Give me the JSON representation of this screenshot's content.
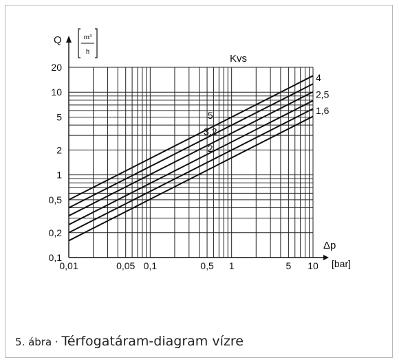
{
  "caption": {
    "number": "5. ábra",
    "separator": " · ",
    "title": "Térfogatáram-diagram vízre"
  },
  "chart_data": {
    "type": "line",
    "xscale": "log",
    "yscale": "log",
    "xlim": [
      0.01,
      10
    ],
    "ylim": [
      0.1,
      20
    ],
    "grid": true,
    "xlabel": "Δp",
    "xunit": "[bar]",
    "ylabel": "Q",
    "yunit_num": "m³",
    "yunit_den": "h",
    "legend_title": "Kvs",
    "x_ticks": [
      {
        "value": 0.01,
        "label": "0,01"
      },
      {
        "value": 0.05,
        "label": "0,05"
      },
      {
        "value": 0.1,
        "label": "0,1"
      },
      {
        "value": 0.5,
        "label": "0,5"
      },
      {
        "value": 1,
        "label": "1"
      },
      {
        "value": 5,
        "label": "5"
      },
      {
        "value": 10,
        "label": "10"
      }
    ],
    "y_ticks": [
      {
        "value": 0.1,
        "label": "0,1"
      },
      {
        "value": 0.2,
        "label": "0,2"
      },
      {
        "value": 0.5,
        "label": "0,5"
      },
      {
        "value": 1,
        "label": "1"
      },
      {
        "value": 2,
        "label": "2"
      },
      {
        "value": 5,
        "label": "5"
      },
      {
        "value": 10,
        "label": "10"
      },
      {
        "value": 20,
        "label": "20"
      }
    ],
    "series": [
      {
        "name": "4",
        "kvs": 4,
        "x": [
          0.01,
          10
        ],
        "y": [
          0.4,
          12.6
        ]
      },
      {
        "name": "2,5",
        "kvs": 2.5,
        "x": [
          0.01,
          10
        ],
        "y": [
          0.25,
          7.9
        ]
      },
      {
        "name": "1,6",
        "kvs": 1.6,
        "x": [
          0.01,
          10
        ],
        "y": [
          0.16,
          5.1
        ]
      },
      {
        "name": "5",
        "kvs": 5,
        "x": [
          0.01,
          10
        ],
        "y": [
          0.5,
          15.8
        ]
      },
      {
        "name": "3,2",
        "kvs": 3.2,
        "x": [
          0.01,
          10
        ],
        "y": [
          0.32,
          10.1
        ]
      },
      {
        "name": "2",
        "kvs": 2,
        "x": [
          0.01,
          10
        ],
        "y": [
          0.2,
          6.3
        ]
      }
    ]
  }
}
